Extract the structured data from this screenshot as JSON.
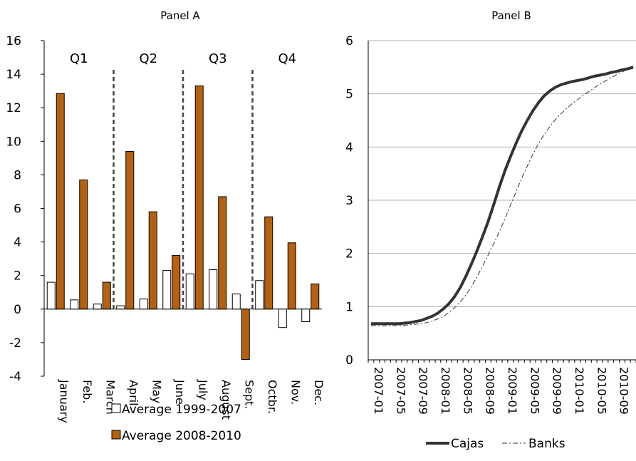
{
  "chart_data": [
    {
      "type": "bar",
      "title": "Panel A",
      "categories": [
        "January",
        "Feb.",
        "March",
        "April",
        "May",
        "June",
        "July",
        "August",
        "Sept.",
        "Octbr.",
        "Nov.",
        "Dec."
      ],
      "quarters": [
        "Q1",
        "Q2",
        "Q3",
        "Q4"
      ],
      "ylim": [
        -4,
        16
      ],
      "yticks": [
        -4,
        -2,
        0,
        2,
        4,
        6,
        8,
        10,
        12,
        14,
        16
      ],
      "grid": false,
      "legend": "bottom",
      "series": [
        {
          "name": "Average 1999-2007",
          "color": "#ffffff",
          "values": [
            1.6,
            0.55,
            0.3,
            0.2,
            0.6,
            2.3,
            2.1,
            2.35,
            0.9,
            1.7,
            -1.1,
            -0.75
          ]
        },
        {
          "name": "Average 2008-2010",
          "color": "#b5610f",
          "values": [
            12.85,
            7.7,
            1.6,
            9.4,
            5.8,
            3.2,
            13.3,
            6.7,
            -3.0,
            5.5,
            3.95,
            1.5
          ]
        }
      ]
    },
    {
      "type": "line",
      "title": "Panel B",
      "ylim": [
        0,
        6
      ],
      "yticks": [
        0,
        1,
        2,
        3,
        4,
        5,
        6
      ],
      "x_tick_labels": [
        "2007-01",
        "2007-05",
        "2007-09",
        "2008-01",
        "2008-05",
        "2008-09",
        "2009-01",
        "2009-05",
        "2009-09",
        "2010-01",
        "2010-05",
        "2010-09"
      ],
      "x_months": [
        "2007-01",
        "2007-02",
        "2007-03",
        "2007-04",
        "2007-05",
        "2007-06",
        "2007-07",
        "2007-08",
        "2007-09",
        "2007-10",
        "2007-11",
        "2007-12",
        "2008-01",
        "2008-02",
        "2008-03",
        "2008-04",
        "2008-05",
        "2008-06",
        "2008-07",
        "2008-08",
        "2008-09",
        "2008-10",
        "2008-11",
        "2008-12",
        "2009-01",
        "2009-02",
        "2009-03",
        "2009-04",
        "2009-05",
        "2009-06",
        "2009-07",
        "2009-08",
        "2009-09",
        "2009-10",
        "2009-11",
        "2009-12",
        "2010-01",
        "2010-02",
        "2010-03",
        "2010-04",
        "2010-05",
        "2010-06",
        "2010-07",
        "2010-08",
        "2010-09",
        "2010-10",
        "2010-11",
        "2010-12"
      ],
      "grid": true,
      "legend": "bottom",
      "series": [
        {
          "name": "Cajas",
          "style": "solid",
          "color": "#333333",
          "values": [
            0.68,
            0.68,
            0.68,
            0.68,
            0.68,
            0.68,
            0.69,
            0.7,
            0.72,
            0.74,
            0.78,
            0.82,
            0.88,
            0.96,
            1.06,
            1.19,
            1.36,
            1.57,
            1.8,
            2.05,
            2.32,
            2.6,
            2.92,
            3.25,
            3.55,
            3.82,
            4.07,
            4.3,
            4.5,
            4.68,
            4.83,
            4.96,
            5.05,
            5.12,
            5.17,
            5.2,
            5.23,
            5.25,
            5.27,
            5.3,
            5.33,
            5.35,
            5.37,
            5.4,
            5.42,
            5.45,
            5.47,
            5.5
          ]
        },
        {
          "name": "Banks",
          "style": "dashdot",
          "color": "#333333",
          "values": [
            0.64,
            0.64,
            0.64,
            0.64,
            0.64,
            0.65,
            0.65,
            0.66,
            0.67,
            0.68,
            0.7,
            0.73,
            0.77,
            0.82,
            0.89,
            0.98,
            1.09,
            1.22,
            1.38,
            1.56,
            1.76,
            1.97,
            2.18,
            2.41,
            2.65,
            2.91,
            3.16,
            3.41,
            3.64,
            3.86,
            4.06,
            4.23,
            4.38,
            4.51,
            4.62,
            4.72,
            4.81,
            4.89,
            4.97,
            5.04,
            5.11,
            5.18,
            5.24,
            5.3,
            5.36,
            5.41,
            5.46,
            5.51
          ]
        }
      ]
    }
  ]
}
